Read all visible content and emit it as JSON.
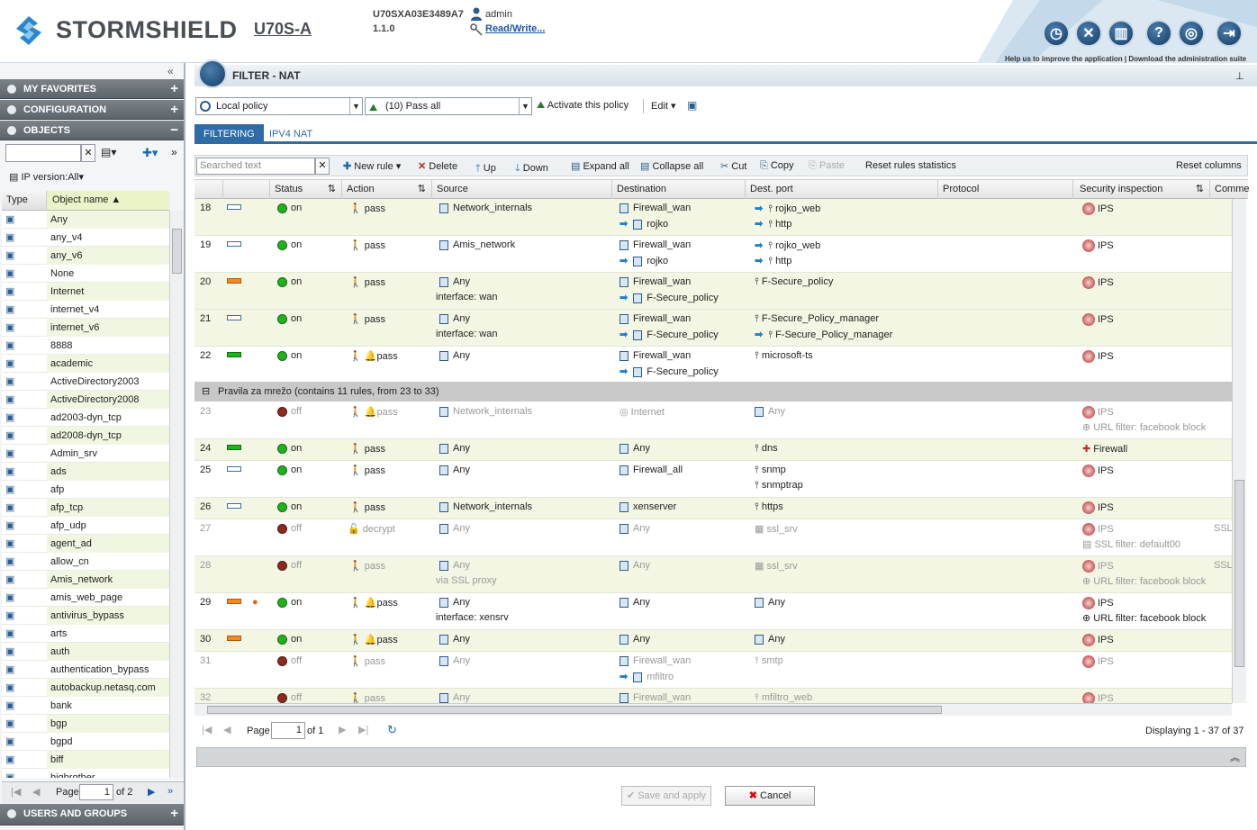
{
  "header": {
    "brand": "STORMSHIELD",
    "model": "U70S-A",
    "serial": "U70SXA03E3489A7",
    "version": "1.1.0",
    "user": "admin",
    "access": "Read/Write...",
    "help_link": "Help us to improve the application",
    "download_link": "Download the administration suite"
  },
  "sidebar": {
    "favorites": "MY FAVORITES",
    "configuration": "CONFIGURATION",
    "objects": "OBJECTS",
    "ip_version": "IP version:All",
    "col_type": "Type",
    "col_name": "Object name",
    "users_groups": "USERS AND GROUPS",
    "pager_label": "Page",
    "pager_value": "1",
    "pager_of": "of 2",
    "objects_list": [
      "Any",
      "any_v4",
      "any_v6",
      "None",
      "Internet",
      "internet_v4",
      "internet_v6",
      "8888",
      "academic",
      "ActiveDirectory2003",
      "ActiveDirectory2008",
      "ad2003-dyn_tcp",
      "ad2008-dyn_tcp",
      "Admin_srv",
      "ads",
      "afp",
      "afp_tcp",
      "afp_udp",
      "agent_ad",
      "allow_cn",
      "Amis_network",
      "amis_web_page",
      "antivirus_bypass",
      "arts",
      "auth",
      "authentication_bypass",
      "autobackup.netasq.com",
      "bank",
      "bgp",
      "bgpd",
      "biff",
      "bigbrother"
    ]
  },
  "main": {
    "title": "FILTER - NAT",
    "policy": "Local policy",
    "slot": "(10) Pass all",
    "activate": "Activate this policy",
    "edit": "Edit",
    "tab_filtering": "FILTERING",
    "tab_nat": "IPV4 NAT",
    "search_placeholder": "Searched text",
    "toolbar": {
      "new_rule": "New rule",
      "delete": "Delete",
      "up": "Up",
      "down": "Down",
      "expand": "Expand all",
      "collapse": "Collapse all",
      "cut": "Cut",
      "copy": "Copy",
      "paste": "Paste",
      "reset_stats": "Reset rules statistics",
      "reset_cols": "Reset columns"
    },
    "columns": {
      "status": "Status",
      "action": "Action",
      "source": "Source",
      "destination": "Destination",
      "dest_port": "Dest. port",
      "protocol": "Protocol",
      "security": "Security inspection",
      "comment": "Comme"
    },
    "separator": "Pravila za mrežo (contains 11 rules, from 23 to 33)",
    "pager": {
      "label": "Page",
      "value": "1",
      "of": "of 1",
      "displaying": "Displaying 1 - 37 of 37"
    },
    "save": "Save and apply",
    "cancel": "Cancel"
  }
}
